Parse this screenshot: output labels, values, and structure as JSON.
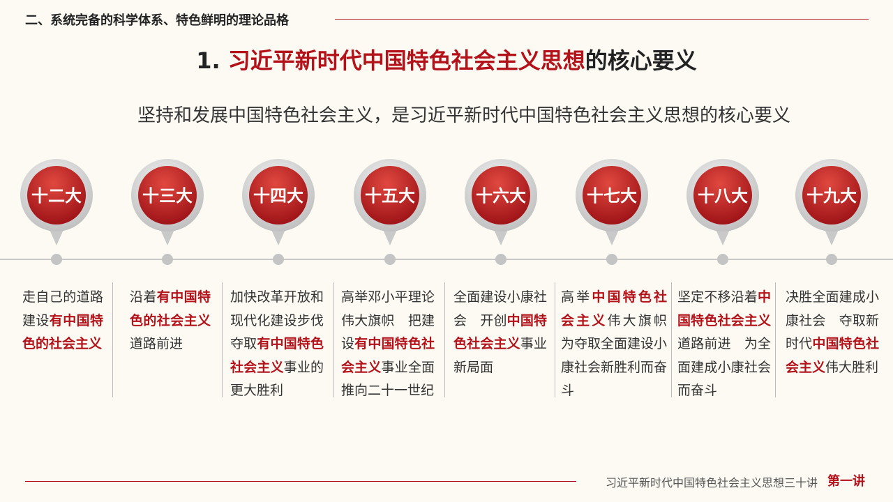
{
  "header": {
    "section": "二、系统完备的科学体系、特色鲜明的理论品格",
    "title_prefix": "1. ",
    "title_highlight": "习近平新时代中国特色社会主义思想",
    "title_suffix": "的核心要义",
    "subtitle": "坚持和发展中国特色社会主义，是习近平新时代中国特色社会主义思想的核心要义"
  },
  "milestones": [
    {
      "label": "十二大",
      "segments": [
        {
          "text": "走自己的道路建设",
          "emphasis": false
        },
        {
          "text": "有中国特色的社会主义",
          "emphasis": true
        }
      ]
    },
    {
      "label": "十三大",
      "segments": [
        {
          "text": "沿着",
          "emphasis": false
        },
        {
          "text": "有中国特色的社会主义",
          "emphasis": true
        },
        {
          "text": "道路前进",
          "emphasis": false
        }
      ]
    },
    {
      "label": "十四大",
      "segments": [
        {
          "text": "加快改革开放和现代化建设步伐夺取",
          "emphasis": false
        },
        {
          "text": "有中国特色社会主义",
          "emphasis": true
        },
        {
          "text": "事业的更大胜利",
          "emphasis": false
        }
      ]
    },
    {
      "label": "十五大",
      "segments": [
        {
          "text": "高举邓小平理论伟大旗帜　把建设",
          "emphasis": false
        },
        {
          "text": "有中国特色社会主义",
          "emphasis": true
        },
        {
          "text": "事业全面推向二十一世纪",
          "emphasis": false
        }
      ]
    },
    {
      "label": "十六大",
      "segments": [
        {
          "text": "全面建设小康社会　开创",
          "emphasis": false
        },
        {
          "text": "中国特色社会主义",
          "emphasis": true
        },
        {
          "text": "事业新局面",
          "emphasis": false
        }
      ]
    },
    {
      "label": "十七大",
      "segments": [
        {
          "text": "高举",
          "emphasis": false
        },
        {
          "text": "中国特色社会主义",
          "emphasis": true
        },
        {
          "text": "伟大旗帜　为夺取全面建设小康社会新胜利而奋斗",
          "emphasis": false
        }
      ]
    },
    {
      "label": "十八大",
      "segments": [
        {
          "text": "坚定不移沿着",
          "emphasis": false
        },
        {
          "text": "中国特色社会主义",
          "emphasis": true
        },
        {
          "text": "道路前进　为全面建成小康社会而奋斗",
          "emphasis": false
        }
      ]
    },
    {
      "label": "十九大",
      "segments": [
        {
          "text": "决胜全面建成小康社会　夺取新时代",
          "emphasis": false
        },
        {
          "text": "中国特色社会主义",
          "emphasis": true
        },
        {
          "text": "伟大胜利",
          "emphasis": false
        }
      ]
    }
  ],
  "footer": {
    "series": "习近平新时代中国特色社会主义思想三十讲",
    "lecture": "第一讲"
  }
}
